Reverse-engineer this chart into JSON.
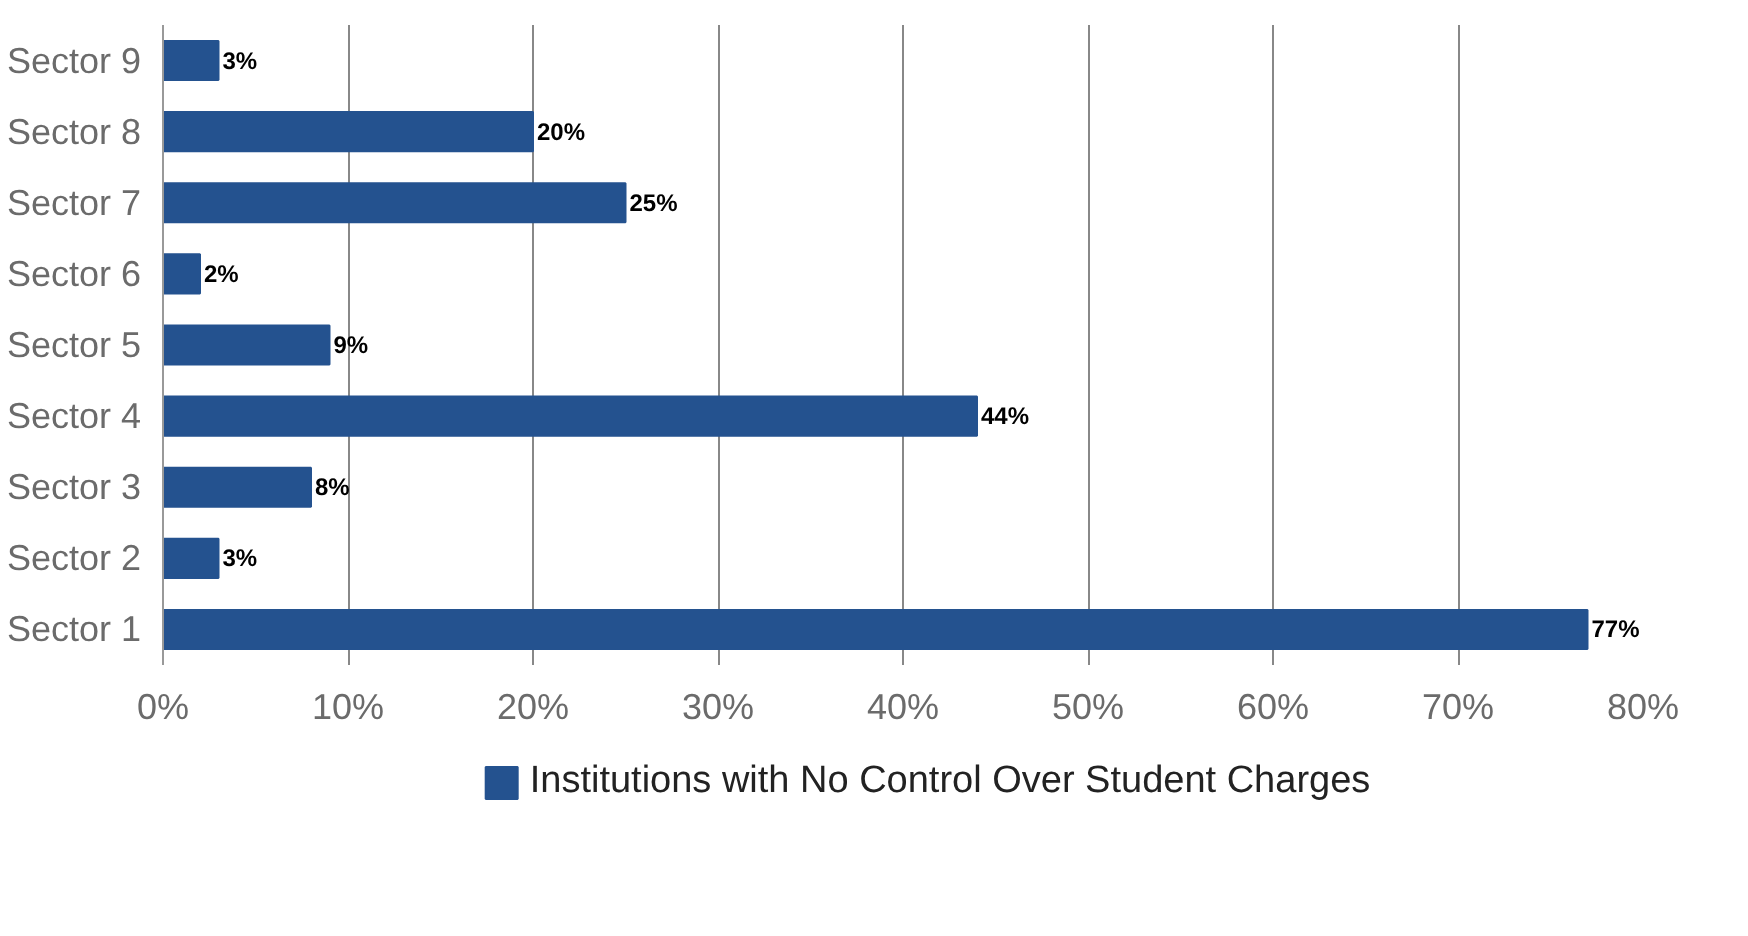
{
  "chart_data": {
    "type": "bar",
    "orientation": "horizontal",
    "categories": [
      "Sector 9",
      "Sector 8",
      "Sector 7",
      "Sector 6",
      "Sector 5",
      "Sector 4",
      "Sector 3",
      "Sector 2",
      "Sector 1"
    ],
    "series": [
      {
        "name": "Institutions with No Control Over Student Charges",
        "color": "#24528f",
        "values": [
          3,
          20,
          25,
          2,
          9,
          44,
          8,
          3,
          77
        ],
        "value_labels": [
          "3%",
          "20%",
          "25%",
          "2%",
          "9%",
          "44%",
          "8%",
          "3%",
          "77%"
        ]
      }
    ],
    "xlim": [
      0,
      80
    ],
    "xticks": [
      {
        "value": 0,
        "label": "0%"
      },
      {
        "value": 10,
        "label": "10%"
      },
      {
        "value": 20,
        "label": "20%"
      },
      {
        "value": 30,
        "label": "30%"
      },
      {
        "value": 40,
        "label": "40%"
      },
      {
        "value": 50,
        "label": "50%"
      },
      {
        "value": 60,
        "label": "60%"
      },
      {
        "value": 70,
        "label": "70%"
      },
      {
        "value": 80,
        "label": "80%"
      }
    ],
    "grid": "x",
    "legend": "bottom"
  }
}
